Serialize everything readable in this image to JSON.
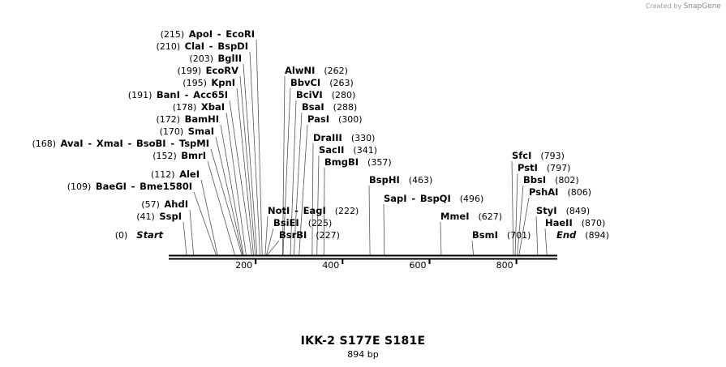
{
  "branding": {
    "prefix": "Created by",
    "name": "SnapGene"
  },
  "plasmid": {
    "name": "IKK-2 S177E S181E",
    "length_label": "894 bp",
    "length": 894
  },
  "ends": [
    {
      "label": "Start",
      "pos": 0,
      "pos_label": "(0)"
    },
    {
      "label": "End",
      "pos": 894,
      "pos_label": "(894)"
    }
  ],
  "ruler": {
    "ticks": [
      200,
      400,
      600,
      800
    ],
    "labels": [
      "200",
      "400",
      "600",
      "800"
    ]
  },
  "sites": [
    {
      "names": [
        "ApoI",
        "EcoRI"
      ],
      "pos": 215,
      "pos_label": "(215)"
    },
    {
      "names": [
        "ClaI",
        "BspDI"
      ],
      "pos": 210,
      "pos_label": "(210)"
    },
    {
      "names": [
        "BglII"
      ],
      "pos": 203,
      "pos_label": "(203)"
    },
    {
      "names": [
        "EcoRV"
      ],
      "pos": 199,
      "pos_label": "(199)"
    },
    {
      "names": [
        "KpnI"
      ],
      "pos": 195,
      "pos_label": "(195)"
    },
    {
      "names": [
        "BanI",
        "Acc65I"
      ],
      "pos": 191,
      "pos_label": "(191)"
    },
    {
      "names": [
        "XbaI"
      ],
      "pos": 178,
      "pos_label": "(178)"
    },
    {
      "names": [
        "BamHI"
      ],
      "pos": 172,
      "pos_label": "(172)"
    },
    {
      "names": [
        "SmaI"
      ],
      "pos": 170,
      "pos_label": "(170)"
    },
    {
      "names": [
        "AvaI",
        "XmaI",
        "BsoBI",
        "TspMI"
      ],
      "pos": 168,
      "pos_label": "(168)"
    },
    {
      "names": [
        "BmrI"
      ],
      "pos": 152,
      "pos_label": "(152)"
    },
    {
      "names": [
        "AleI"
      ],
      "pos": 112,
      "pos_label": "(112)"
    },
    {
      "names": [
        "BaeGI",
        "Bme1580I"
      ],
      "pos": 109,
      "pos_label": "(109)"
    },
    {
      "names": [
        "AhdI"
      ],
      "pos": 57,
      "pos_label": "(57)"
    },
    {
      "names": [
        "SspI"
      ],
      "pos": 41,
      "pos_label": "(41)"
    },
    {
      "names": [
        "AlwNI"
      ],
      "pos": 262,
      "pos_label": "(262)"
    },
    {
      "names": [
        "BbvCI"
      ],
      "pos": 263,
      "pos_label": "(263)"
    },
    {
      "names": [
        "BciVI"
      ],
      "pos": 280,
      "pos_label": "(280)"
    },
    {
      "names": [
        "BsaI"
      ],
      "pos": 288,
      "pos_label": "(288)"
    },
    {
      "names": [
        "PasI"
      ],
      "pos": 300,
      "pos_label": "(300)"
    },
    {
      "names": [
        "DraIII"
      ],
      "pos": 330,
      "pos_label": "(330)"
    },
    {
      "names": [
        "SacII"
      ],
      "pos": 341,
      "pos_label": "(341)"
    },
    {
      "names": [
        "BmgBI"
      ],
      "pos": 357,
      "pos_label": "(357)"
    },
    {
      "names": [
        "NotI",
        "EagI"
      ],
      "pos": 222,
      "pos_label": "(222)"
    },
    {
      "names": [
        "BsiEI"
      ],
      "pos": 225,
      "pos_label": "(225)"
    },
    {
      "names": [
        "BsrBI"
      ],
      "pos": 227,
      "pos_label": "(227)"
    },
    {
      "names": [
        "BspHI"
      ],
      "pos": 463,
      "pos_label": "(463)"
    },
    {
      "names": [
        "SapI",
        "BspQI"
      ],
      "pos": 496,
      "pos_label": "(496)"
    },
    {
      "names": [
        "MmeI"
      ],
      "pos": 627,
      "pos_label": "(627)"
    },
    {
      "names": [
        "BsmI"
      ],
      "pos": 701,
      "pos_label": "(701)"
    },
    {
      "names": [
        "SfcI"
      ],
      "pos": 793,
      "pos_label": "(793)"
    },
    {
      "names": [
        "PstI"
      ],
      "pos": 797,
      "pos_label": "(797)"
    },
    {
      "names": [
        "BbsI"
      ],
      "pos": 802,
      "pos_label": "(802)"
    },
    {
      "names": [
        "PshAI"
      ],
      "pos": 806,
      "pos_label": "(806)"
    },
    {
      "names": [
        "StyI"
      ],
      "pos": 849,
      "pos_label": "(849)"
    },
    {
      "names": [
        "HaeII"
      ],
      "pos": 870,
      "pos_label": "(870)"
    }
  ]
}
